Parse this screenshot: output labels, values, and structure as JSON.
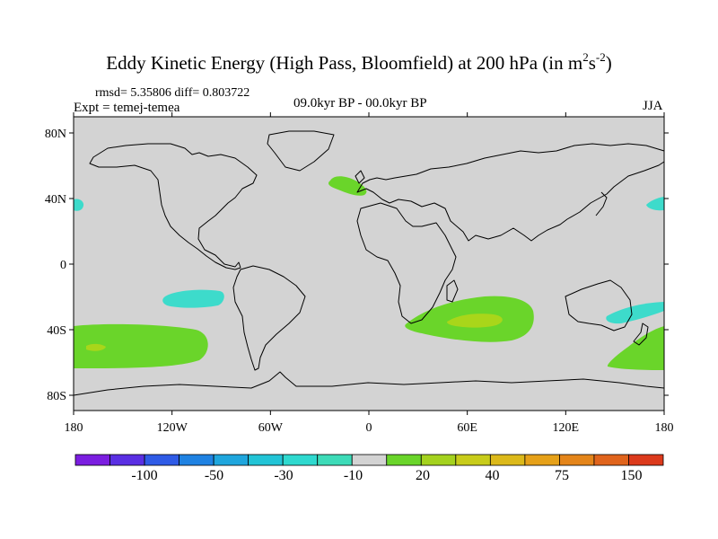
{
  "title": {
    "main": "Eddy Kinetic Energy (High Pass, Bloomfield) at 200 hPa (in m",
    "sup1": "2",
    "mid": "s",
    "sup2": "-2",
    "end": ")"
  },
  "stats": "rmsd= 5.35806 diff= 0.803722",
  "experiment": "Expt = temej-temea",
  "period": "09.0kyr BP - 00.0kyr BP",
  "season": "JJA",
  "map": {
    "background_color": "#d3d3d3",
    "coast_color": "#000000",
    "lon_labels": [
      "180",
      "120W",
      "60W",
      "0",
      "60E",
      "120E",
      "180"
    ],
    "lat_labels": [
      "80N",
      "40N",
      "0",
      "40S",
      "80S"
    ]
  },
  "anomalies": [
    {
      "region": "North Atlantic / Iberia",
      "color": "#6ad52a"
    },
    {
      "region": "South Atlantic / Indian Ocean",
      "color": "#6ad52a"
    },
    {
      "region": "South Atlantic / Indian Ocean core",
      "color": "#a9d61a"
    },
    {
      "region": "Southeast Pacific",
      "color": "#6ad52a"
    },
    {
      "region": "Southeast Pacific core",
      "color": "#a9d61a"
    },
    {
      "region": "Southwest Pacific (east of New Zealand)",
      "color": "#6ad52a"
    },
    {
      "region": "Tasman Sea",
      "color": "#3ddbcb"
    },
    {
      "region": "Subtropical South Pacific",
      "color": "#3ddbcb"
    },
    {
      "region": "North Pacific west edge",
      "color": "#3ddbcb"
    },
    {
      "region": "North Pacific east edge",
      "color": "#3ddbcb"
    }
  ],
  "colorbar": {
    "colors": [
      "#7b1ee0",
      "#5a2fe3",
      "#2f5be6",
      "#1f82e2",
      "#1fa6dd",
      "#22c4d6",
      "#2fd9cf",
      "#3ddbb8",
      "#d3d3d3",
      "#6ad52a",
      "#a4d21e",
      "#c8cc1a",
      "#dcb91a",
      "#e6a119",
      "#e4851a",
      "#e0641c",
      "#dc3a1c"
    ],
    "labels": [
      "-100",
      "-50",
      "-30",
      "-10",
      "20",
      "40",
      "75",
      "150"
    ]
  }
}
